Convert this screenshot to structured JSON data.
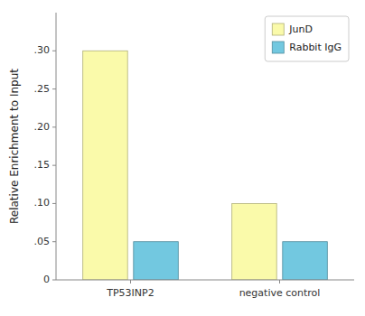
{
  "chart_data": {
    "type": "bar",
    "categories": [
      "TP53INP2",
      "negative control"
    ],
    "series": [
      {
        "name": "JunD",
        "color": "#FAFAAA",
        "values": [
          0.3,
          0.1
        ]
      },
      {
        "name": "Rabbit IgG",
        "color": "#72C8E0",
        "values": [
          0.05,
          0.05
        ]
      }
    ],
    "ylabel": "Relative Enrichment to Input",
    "ylim": [
      0,
      0.35
    ],
    "yticks": [
      0,
      {
        "value": 0.05,
        "label": ".05"
      },
      {
        "value": 0.1,
        "label": ".10"
      },
      {
        "value": 0.15,
        "label": ".15"
      },
      {
        "value": 0.2,
        "label": ".20"
      },
      {
        "value": 0.25,
        "label": ".25"
      },
      {
        "value": 0.3,
        "label": ".30"
      }
    ],
    "legend": "upper right",
    "grid": false
  }
}
